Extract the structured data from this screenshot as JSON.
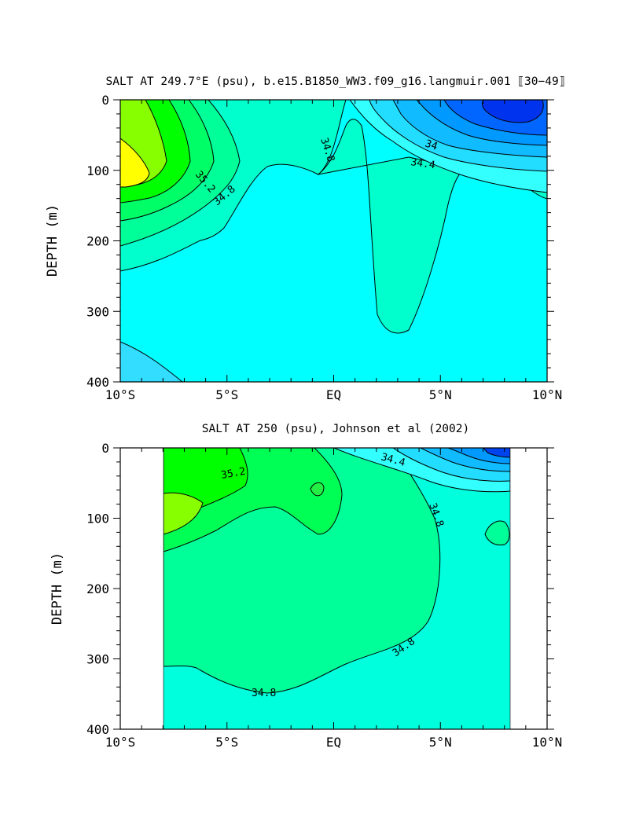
{
  "chart_data": [
    {
      "type": "heatmap",
      "title": "SALT AT 249.7°E (psu), b.e15.B1850_WW3.f09_g16.langmuir.001 ⟦30−49⟧",
      "xlabel": "",
      "ylabel": "DEPTH (m)",
      "xlim": [
        -10,
        10
      ],
      "ylim": [
        400,
        0
      ],
      "x_tick_labels": [
        "10°S",
        "5°S",
        "EQ",
        "5°N",
        "10°N"
      ],
      "y_tick_labels": [
        "0",
        "100",
        "200",
        "300",
        "400"
      ],
      "contour_labels": [
        "35.2",
        "34.8",
        "34.8",
        "34.4",
        "34"
      ],
      "colors": {
        "max": "#ffff00",
        "high": "#00ff00",
        "mid": "#00ffcc",
        "base": "#00ffff",
        "low": "#33ccff",
        "min": "#0033ff"
      }
    },
    {
      "type": "heatmap",
      "title": "SALT AT 250 (psu), Johnson et al (2002)",
      "xlabel": "",
      "ylabel": "DEPTH (m)",
      "xlim": [
        -10,
        10
      ],
      "ylim": [
        400,
        0
      ],
      "data_x_range": [
        -8,
        8.2
      ],
      "data_depth_range": [
        0,
        400
      ],
      "x_tick_labels": [
        "10°S",
        "5°S",
        "EQ",
        "5°N",
        "10°N"
      ],
      "y_tick_labels": [
        "0",
        "100",
        "200",
        "300",
        "400"
      ],
      "contour_labels": [
        "35.2",
        "34.4",
        "34.8",
        "34.8",
        "34.8"
      ],
      "colors": {
        "max": "#99ff00",
        "high": "#00ff44",
        "mid": "#00ff99",
        "base": "#00ffdd",
        "low": "#33ccff",
        "min": "#0033ff"
      }
    }
  ]
}
